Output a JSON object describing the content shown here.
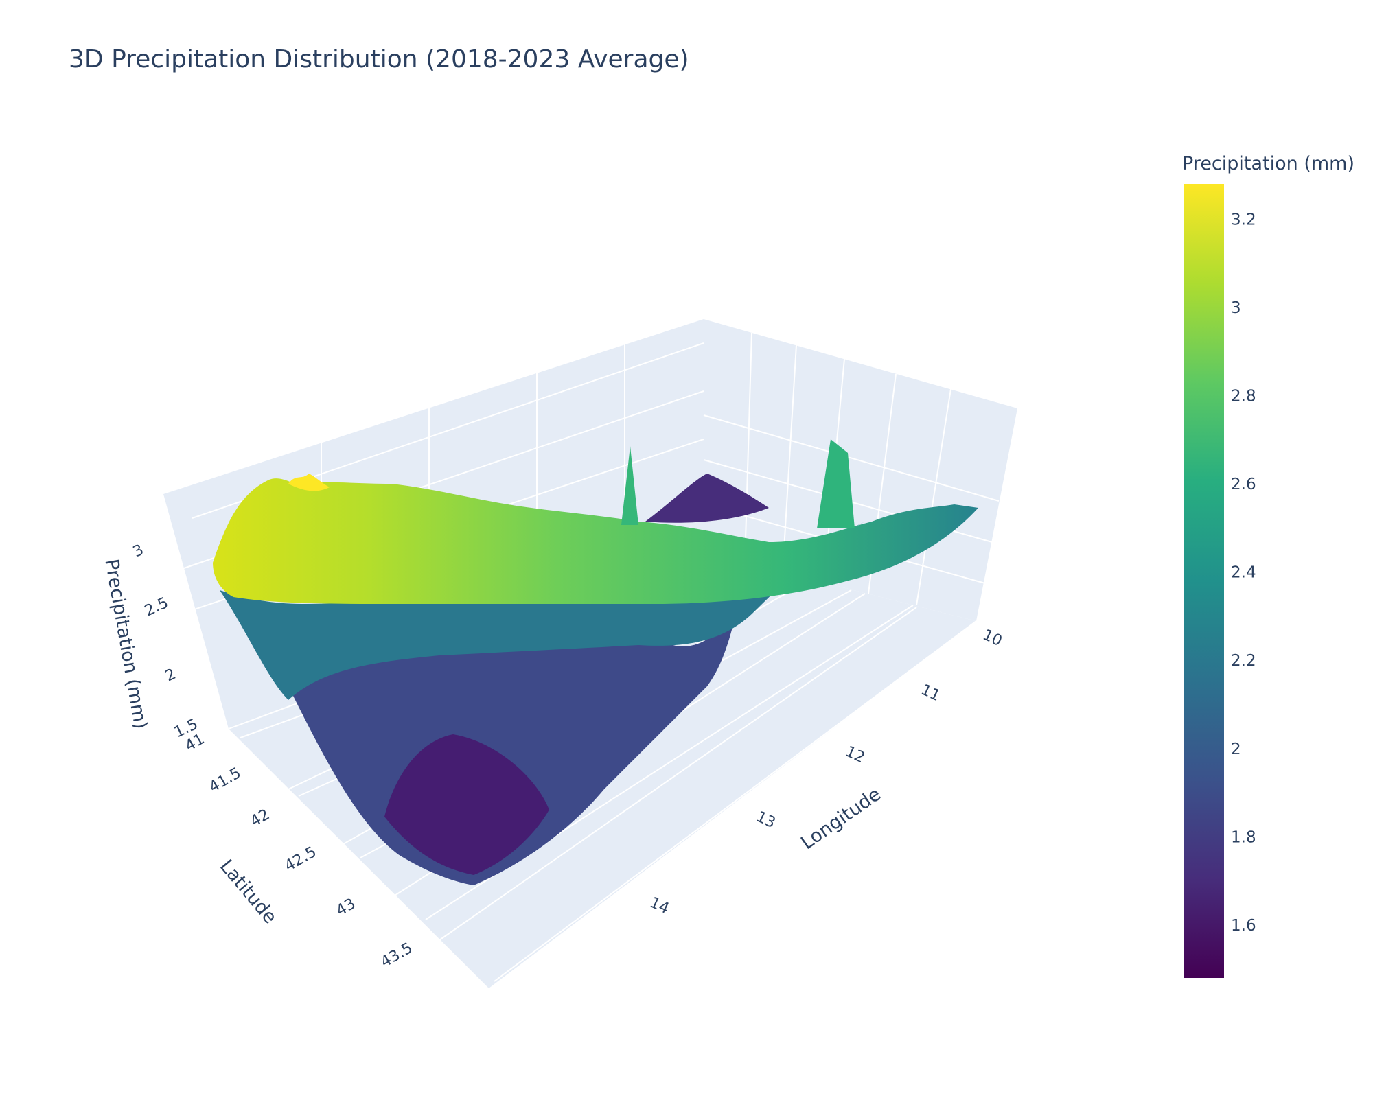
{
  "chart_data": {
    "type": "surface",
    "title": "3D Precipitation Distribution (2018-2023 Average)",
    "x_axis": {
      "label": "Longitude",
      "ticks": [
        "10",
        "11",
        "12",
        "13",
        "14"
      ],
      "range": [
        9.6,
        14.9
      ]
    },
    "y_axis": {
      "label": "Latitude",
      "ticks": [
        "41",
        "41.5",
        "42",
        "42.5",
        "43",
        "43.5"
      ],
      "range": [
        40.9,
        43.8
      ]
    },
    "z_axis": {
      "label": "Precipitation (mm)",
      "ticks": [
        "1.5",
        "2",
        "2.5",
        "3"
      ],
      "range": [
        1.45,
        3.3
      ]
    },
    "colorbar": {
      "title": "Precipitation (mm)",
      "colorscale": "Viridis",
      "range": [
        1.48,
        3.28
      ],
      "ticks": [
        "1.6",
        "1.8",
        "2",
        "2.2",
        "2.4",
        "2.6",
        "2.8",
        "3",
        "3.2"
      ]
    },
    "surface_profile": {
      "description_keys": [
        "near_lat_41_high",
        "far_lon_low"
      ],
      "corner_values": {
        "lat41_lon10": 2.5,
        "lat41_lon14": 3.1,
        "lat43_5_lon10": 2.5,
        "lat43_5_lon14": 1.6
      },
      "peaks": [
        {
          "lon": 13.8,
          "lat": 41.0,
          "value": 3.25
        },
        {
          "lon": 12.0,
          "lat": 41.2,
          "value": 2.9
        },
        {
          "lon": 11.2,
          "lat": 41.1,
          "value": 2.95
        }
      ],
      "trough": {
        "lon": 13.5,
        "lat": 43.2,
        "value": 1.5
      }
    },
    "grid": true
  }
}
